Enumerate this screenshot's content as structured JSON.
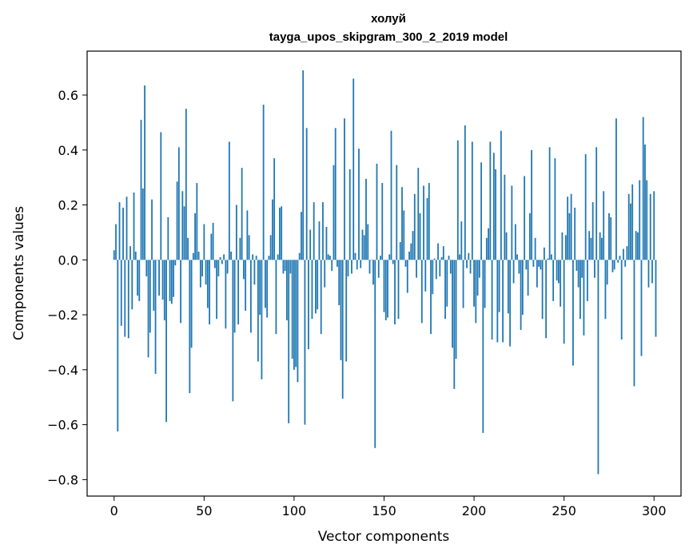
{
  "chart_data": {
    "type": "bar",
    "title_lines": [
      "холуй",
      "tayga_upos_skipgram_300_2_2019 model"
    ],
    "xlabel": "Vector components",
    "ylabel": "Components values",
    "xlim": [
      -15,
      315
    ],
    "ylim": [
      -0.86,
      0.76
    ],
    "xticks": [
      0,
      50,
      100,
      150,
      200,
      250,
      300
    ],
    "xtick_labels": [
      "0",
      "50",
      "100",
      "150",
      "200",
      "250",
      "300"
    ],
    "yticks": [
      -0.8,
      -0.6,
      -0.4,
      -0.2,
      0.0,
      0.2,
      0.4,
      0.6
    ],
    "ytick_labels": [
      "−0.8",
      "−0.6",
      "−0.4",
      "−0.2",
      "0.0",
      "0.2",
      "0.4",
      "0.6"
    ],
    "grid": false,
    "bar_color": "#1f77b4",
    "values": [
      0.035,
      0.13,
      -0.625,
      0.21,
      -0.24,
      0.19,
      -0.28,
      0.23,
      -0.285,
      0.05,
      -0.18,
      0.245,
      0.03,
      -0.13,
      -0.15,
      0.51,
      0.26,
      0.635,
      -0.06,
      -0.355,
      -0.265,
      0.22,
      -0.185,
      -0.415,
      0.0,
      -0.13,
      0.465,
      -0.145,
      -0.22,
      -0.59,
      0.155,
      -0.15,
      -0.16,
      -0.135,
      -0.02,
      0.285,
      0.41,
      -0.23,
      0.25,
      0.195,
      0.55,
      0.08,
      -0.485,
      -0.32,
      0.025,
      0.17,
      0.28,
      0.03,
      -0.1,
      -0.06,
      0.13,
      -0.09,
      -0.175,
      -0.235,
      0.095,
      0.135,
      -0.03,
      -0.215,
      -0.06,
      0.01,
      -0.015,
      0.02,
      -0.25,
      -0.05,
      0.43,
      0.03,
      -0.515,
      -0.265,
      0.2,
      -0.235,
      0.08,
      0.335,
      -0.07,
      -0.185,
      0.18,
      0.09,
      -0.265,
      0.02,
      -0.09,
      0.015,
      -0.37,
      -0.2,
      -0.435,
      0.565,
      -0.175,
      -0.21,
      0.015,
      0.09,
      0.22,
      0.37,
      -0.27,
      0.02,
      0.19,
      0.195,
      -0.05,
      -0.04,
      -0.22,
      -0.595,
      -0.05,
      -0.36,
      -0.4,
      -0.39,
      -0.445,
      0.025,
      0.175,
      0.69,
      -0.6,
      0.48,
      -0.325,
      0.11,
      -0.215,
      0.21,
      -0.195,
      -0.18,
      0.14,
      -0.27,
      0.21,
      -0.1,
      0.12,
      0.02,
      0.015,
      -0.04,
      0.345,
      0.48,
      -0.025,
      -0.165,
      -0.365,
      -0.505,
      0.515,
      -0.37,
      -0.06,
      0.33,
      -0.05,
      0.66,
      0.025,
      -0.035,
      0.405,
      -0.03,
      0.11,
      0.09,
      0.295,
      0.13,
      -0.05,
      0.0,
      -0.09,
      -0.685,
      0.35,
      -0.065,
      0.015,
      0.28,
      -0.19,
      -0.22,
      -0.21,
      0.02,
      0.47,
      -0.015,
      -0.235,
      0.345,
      -0.215,
      0.065,
      0.265,
      0.18,
      -0.025,
      -0.12,
      0.03,
      0.06,
      0.105,
      0.24,
      -0.065,
      0.335,
      0.17,
      -0.23,
      0.27,
      -0.115,
      0.225,
      0.28,
      -0.27,
      -0.125,
      0.005,
      -0.07,
      0.06,
      -0.06,
      0.01,
      0.05,
      -0.215,
      -0.17,
      0.015,
      -0.05,
      -0.32,
      -0.47,
      -0.36,
      0.435,
      0.02,
      0.14,
      -0.175,
      0.49,
      -0.03,
      0.025,
      -0.05,
      0.43,
      -0.17,
      -0.23,
      -0.13,
      -0.065,
      0.355,
      -0.63,
      -0.175,
      0.08,
      0.115,
      0.43,
      -0.29,
      0.39,
      0.33,
      -0.3,
      -0.19,
      0.47,
      -0.3,
      0.31,
      0.1,
      -0.195,
      -0.315,
      0.27,
      -0.085,
      0.13,
      0.02,
      -0.05,
      -0.255,
      -0.2,
      0.305,
      -0.035,
      -0.13,
      0.17,
      0.4,
      -0.025,
      0.08,
      -0.1,
      -0.025,
      -0.035,
      -0.215,
      0.045,
      -0.285,
      0.005,
      0.41,
      0.02,
      -0.15,
      0.37,
      -0.075,
      -0.085,
      -0.17,
      0.1,
      -0.305,
      0.09,
      0.23,
      0.17,
      0.24,
      -0.385,
      0.19,
      -0.04,
      -0.1,
      -0.215,
      -0.065,
      -0.275,
      0.385,
      -0.15,
      0.105,
      0.08,
      0.21,
      -0.065,
      0.41,
      -0.78,
      0.1,
      0.08,
      0.25,
      -0.215,
      -0.09,
      0.17,
      0.155,
      -0.045,
      -0.035,
      0.515,
      -0.01,
      0.015,
      -0.29,
      0.04,
      -0.025,
      0.05,
      0.24,
      0.205,
      0.275,
      -0.46,
      0.105,
      0.1,
      0.29,
      -0.35,
      0.52,
      0.42,
      0.29,
      -0.1,
      0.24,
      -0.085,
      0.25,
      -0.28
    ]
  }
}
